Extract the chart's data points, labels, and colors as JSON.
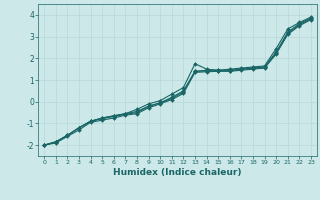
{
  "xlabel": "Humidex (Indice chaleur)",
  "ylabel": "",
  "bg_color": "#cce8e8",
  "grid_color": "#b8d8d8",
  "line_color": "#1a6666",
  "xlim": [
    -0.5,
    23.5
  ],
  "ylim": [
    -2.5,
    4.5
  ],
  "xticks": [
    0,
    1,
    2,
    3,
    4,
    5,
    6,
    7,
    8,
    9,
    10,
    11,
    12,
    13,
    14,
    15,
    16,
    17,
    18,
    19,
    20,
    21,
    22,
    23
  ],
  "yticks": [
    -2,
    -1,
    0,
    1,
    2,
    3,
    4
  ],
  "series": [
    [
      -2.0,
      -1.85,
      -1.55,
      -1.2,
      -0.9,
      -0.75,
      -0.65,
      -0.55,
      -0.35,
      -0.1,
      0.05,
      0.35,
      0.65,
      1.75,
      1.5,
      1.45,
      1.5,
      1.55,
      1.6,
      1.65,
      2.45,
      3.35,
      3.65,
      3.9
    ],
    [
      -2.0,
      -1.85,
      -1.55,
      -1.2,
      -0.9,
      -0.75,
      -0.65,
      -0.55,
      -0.45,
      -0.2,
      -0.05,
      0.2,
      0.5,
      1.4,
      1.45,
      1.45,
      1.45,
      1.5,
      1.55,
      1.6,
      2.3,
      3.2,
      3.6,
      3.85
    ],
    [
      -2.0,
      -1.85,
      -1.55,
      -1.2,
      -0.9,
      -0.78,
      -0.68,
      -0.58,
      -0.5,
      -0.22,
      -0.05,
      0.15,
      0.45,
      1.4,
      1.42,
      1.42,
      1.42,
      1.5,
      1.55,
      1.58,
      2.25,
      3.15,
      3.55,
      3.82
    ],
    [
      -2.0,
      -1.9,
      -1.6,
      -1.3,
      -0.95,
      -0.85,
      -0.75,
      -0.62,
      -0.55,
      -0.28,
      -0.1,
      0.1,
      0.38,
      1.35,
      1.38,
      1.4,
      1.4,
      1.45,
      1.5,
      1.55,
      2.2,
      3.1,
      3.5,
      3.78
    ]
  ]
}
